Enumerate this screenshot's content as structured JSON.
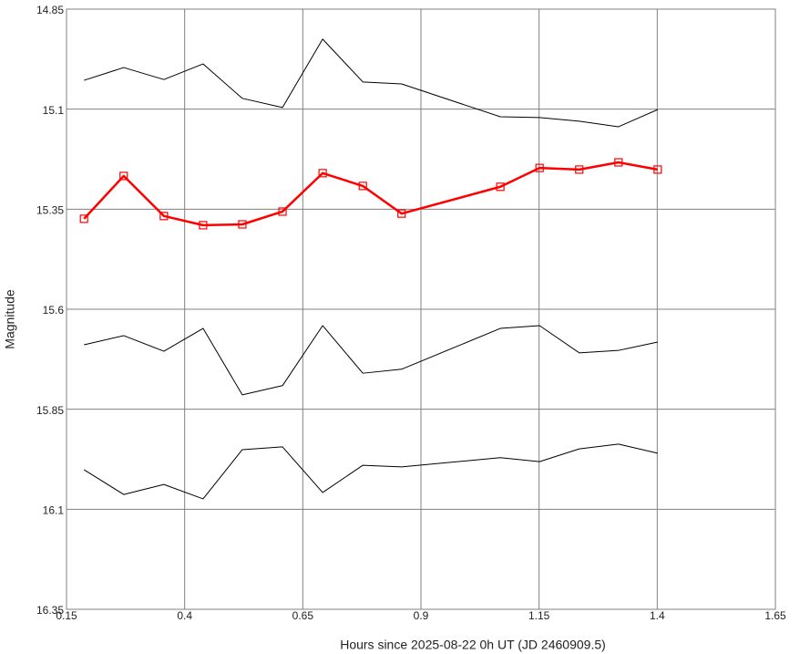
{
  "chart_data": {
    "type": "line",
    "xlabel": "Hours since 2025-08-22 0h UT (JD 2460909.5)",
    "ylabel": "Magnitude",
    "x": [
      0.187,
      0.271,
      0.356,
      0.439,
      0.522,
      0.607,
      0.692,
      0.777,
      0.859,
      1.068,
      1.151,
      1.235,
      1.318,
      1.401
    ],
    "series": [
      {
        "color": "#000000",
        "values": [
          15.028,
          14.996,
          15.026,
          14.987,
          15.073,
          15.096,
          14.925,
          15.032,
          15.037,
          15.119,
          15.121,
          15.13,
          15.144,
          15.101
        ]
      },
      {
        "color": "#ff0000",
        "marker": "square",
        "values": [
          15.374,
          15.267,
          15.367,
          15.39,
          15.388,
          15.356,
          15.26,
          15.292,
          15.361,
          15.294,
          15.247,
          15.251,
          15.233,
          15.251
        ]
      },
      {
        "color": "#000000",
        "values": [
          15.689,
          15.666,
          15.705,
          15.648,
          15.814,
          15.791,
          15.641,
          15.76,
          15.75,
          15.648,
          15.641,
          15.709,
          15.703,
          15.682
        ]
      },
      {
        "color": "#000000",
        "values": [
          16.001,
          16.063,
          16.038,
          16.074,
          15.951,
          15.944,
          16.058,
          15.99,
          15.994,
          15.971,
          15.981,
          15.949,
          15.937,
          15.96
        ]
      }
    ],
    "xlim": [
      0.15,
      1.65
    ],
    "xticks": [
      0.15,
      0.4,
      0.65,
      0.9,
      1.15,
      1.4,
      1.65
    ],
    "ylim": [
      14.85,
      16.35
    ],
    "yticks": [
      14.85,
      15.1,
      15.35,
      15.6,
      15.85,
      16.1,
      16.35
    ],
    "y_inverted": true,
    "grid": true
  }
}
